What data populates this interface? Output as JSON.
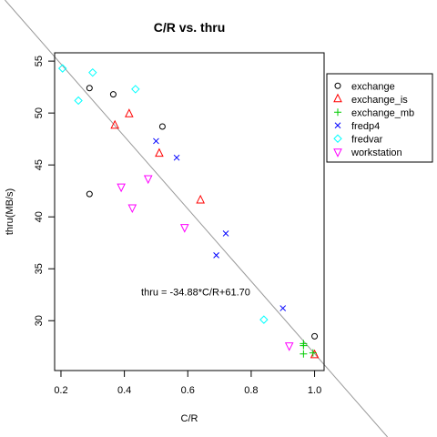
{
  "chart_data": {
    "type": "scatter",
    "title": "C/R vs. thru",
    "xlabel": "C/R",
    "ylabel": "thru(MB/s)",
    "xlim": [
      0.18,
      1.03
    ],
    "ylim": [
      25.2,
      55.8
    ],
    "x_ticks": [
      0.2,
      0.4,
      0.6,
      0.8,
      1.0
    ],
    "x_tick_labels": [
      "0.2",
      "0.4",
      "0.6",
      "0.8",
      "1.0"
    ],
    "y_ticks": [
      30,
      35,
      40,
      45,
      50,
      55
    ],
    "y_tick_labels": [
      "30",
      "35",
      "40",
      "45",
      "50",
      "55"
    ],
    "grid": false,
    "legend_position": "right",
    "regression": {
      "slope": -34.88,
      "intercept": 61.7,
      "label": "thru = -34.88*C/R+61.70",
      "color": "#999999"
    },
    "series": [
      {
        "name": "exchange",
        "marker": "circle",
        "color": "#000000",
        "points": [
          [
            0.29,
            52.4
          ],
          [
            0.365,
            51.8
          ],
          [
            0.52,
            48.7
          ],
          [
            0.29,
            42.2
          ],
          [
            1.0,
            28.5
          ]
        ]
      },
      {
        "name": "exchange_is",
        "marker": "triangle-up",
        "color": "#ff0000",
        "points": [
          [
            0.415,
            49.9
          ],
          [
            0.37,
            48.8
          ],
          [
            0.51,
            46.1
          ],
          [
            0.64,
            41.6
          ],
          [
            1.0,
            26.7
          ]
        ]
      },
      {
        "name": "exchange_mb",
        "marker": "plus",
        "color": "#00cc00",
        "points": [
          [
            0.965,
            27.6
          ],
          [
            0.965,
            27.8
          ],
          [
            0.965,
            26.8
          ],
          [
            0.995,
            26.9
          ]
        ]
      },
      {
        "name": "fredp4",
        "marker": "x",
        "color": "#0000ff",
        "points": [
          [
            0.5,
            47.3
          ],
          [
            0.565,
            45.7
          ],
          [
            0.72,
            38.4
          ],
          [
            0.69,
            36.3
          ],
          [
            0.9,
            31.2
          ]
        ]
      },
      {
        "name": "fredvar",
        "marker": "diamond",
        "color": "#00ffff",
        "points": [
          [
            0.205,
            54.3
          ],
          [
            0.3,
            53.9
          ],
          [
            0.435,
            52.3
          ],
          [
            0.255,
            51.2
          ],
          [
            0.84,
            30.1
          ]
        ]
      },
      {
        "name": "workstation",
        "marker": "triangle-down",
        "color": "#ff00ff",
        "points": [
          [
            0.475,
            43.7
          ],
          [
            0.39,
            42.9
          ],
          [
            0.425,
            40.9
          ],
          [
            0.59,
            39.0
          ],
          [
            0.92,
            27.6
          ]
        ]
      }
    ]
  }
}
